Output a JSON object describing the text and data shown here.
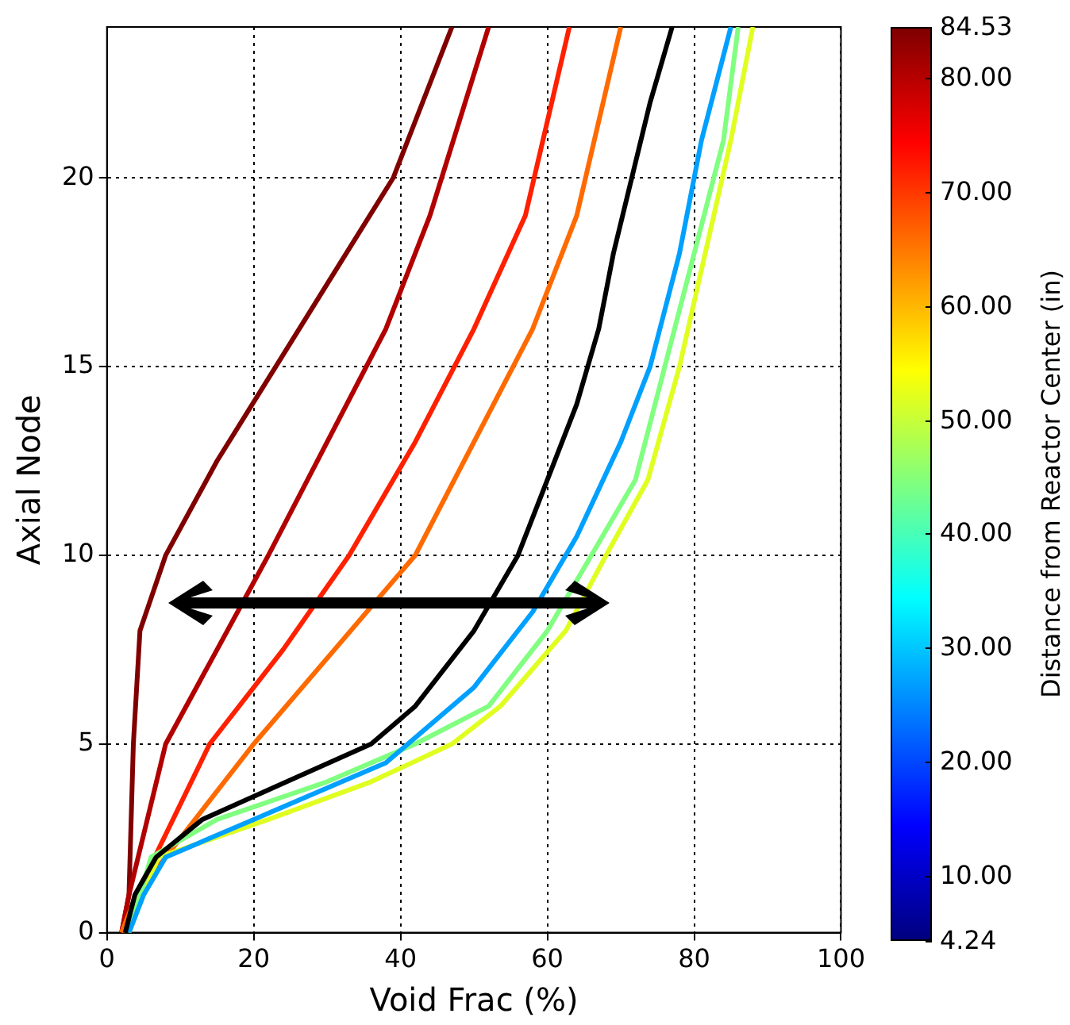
{
  "chart_data": {
    "type": "line",
    "xlabel": "Void Frac (%)",
    "ylabel": "Axial Node",
    "clabel": "Distance from Reactor Center (in)",
    "xlim": [
      0,
      100
    ],
    "xticks": [
      0,
      20,
      40,
      60,
      80,
      100
    ],
    "ylim": [
      0,
      24
    ],
    "yticks": [
      0,
      5,
      10,
      15,
      20
    ],
    "clim": [
      4.24,
      84.53
    ],
    "cticks": [
      {
        "value": 4.24,
        "label": "4.24"
      },
      {
        "value": 10,
        "label": "10.00"
      },
      {
        "value": 20,
        "label": "20.00"
      },
      {
        "value": 30,
        "label": "30.00"
      },
      {
        "value": 40,
        "label": "40.00"
      },
      {
        "value": 50,
        "label": "50.00"
      },
      {
        "value": 60,
        "label": "60.00"
      },
      {
        "value": 70,
        "label": "70.00"
      },
      {
        "value": 80,
        "label": "80.00"
      },
      {
        "value": 84.53,
        "label": "84.53"
      }
    ],
    "grid": true,
    "legend": false,
    "line_style": "solid",
    "series": [
      {
        "color": "#800000",
        "x": [
          2,
          3,
          3.6,
          4.5,
          8,
          15,
          23,
          31,
          39,
          47
        ],
        "values": [
          0,
          1,
          5,
          8,
          10,
          12.5,
          15,
          17.5,
          20,
          24
        ]
      },
      {
        "color": "#b20000",
        "x": [
          2,
          3,
          8,
          15,
          22,
          30,
          38,
          44,
          52
        ],
        "values": [
          0,
          1,
          5,
          7.5,
          10,
          13,
          16,
          19,
          24
        ]
      },
      {
        "color": "#ff2000",
        "x": [
          2,
          4,
          14,
          24,
          33,
          42,
          50,
          57,
          63
        ],
        "values": [
          0,
          1,
          5,
          7.5,
          10,
          13,
          16,
          19,
          24
        ]
      },
      {
        "color": "#ff6a00",
        "x": [
          2,
          4,
          20,
          31,
          42,
          50,
          58,
          64,
          70
        ],
        "values": [
          0,
          1,
          5,
          7.5,
          10,
          13,
          16,
          19,
          24
        ]
      },
      {
        "color": "#e0ff20",
        "x": [
          3,
          7,
          22,
          36,
          47,
          53.6,
          62.5,
          68,
          73.7,
          78,
          81.5,
          85,
          88
        ],
        "values": [
          0,
          2,
          3,
          4,
          5,
          6,
          8,
          10,
          12,
          15,
          18,
          21,
          24
        ]
      },
      {
        "color": "#80ff80",
        "x": [
          3,
          6,
          15,
          30,
          42,
          52,
          60,
          66,
          72,
          76,
          80,
          84,
          86
        ],
        "values": [
          0,
          2,
          3,
          4,
          5,
          6,
          8,
          10,
          12,
          15,
          18,
          21,
          24
        ]
      },
      {
        "color": "#00a0ff",
        "x": [
          3,
          5,
          8,
          20,
          38,
          50,
          58,
          64,
          70,
          74,
          78,
          81,
          85
        ],
        "values": [
          0,
          1,
          2,
          3,
          4.5,
          6.5,
          8.5,
          10.5,
          13,
          15,
          18,
          21,
          24
        ]
      },
      {
        "color": "#000000",
        "x": [
          2.5,
          3.8,
          6.7,
          13,
          24.5,
          36,
          42,
          50,
          56,
          60,
          64,
          67,
          69,
          71.5,
          74,
          77
        ],
        "values": [
          0,
          1,
          2,
          3,
          4,
          5,
          6,
          8,
          10,
          12,
          14,
          16,
          18,
          20,
          22,
          24
        ]
      }
    ]
  }
}
